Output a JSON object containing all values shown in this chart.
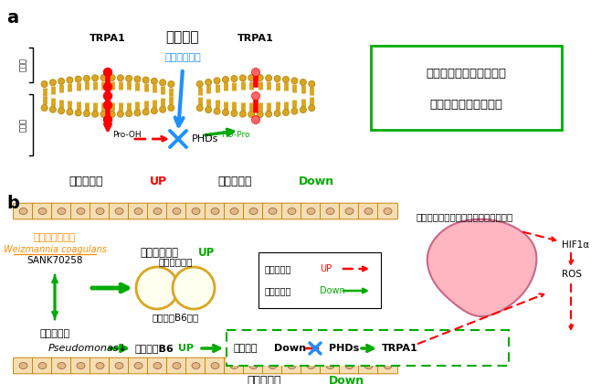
{
  "bg_color": "#ffffff",
  "gold": "#DAA520",
  "dark_gold": "#B8860B",
  "red": "#FF0000",
  "blue": "#1E90FF",
  "dark_blue": "#0000CD",
  "green": "#00AA00",
  "dark_green": "#008000",
  "pink": "#FFB6C1",
  "pink_edge": "#CC8899",
  "orange": "#FF8C00",
  "panel_a": {
    "label": "a",
    "trpa1_left": "TRPA1",
    "trpa1_right": "TRPA1",
    "oxalic": "シュウ酸",
    "hydroxyl": "水酸化の阻害",
    "phds": "PHDs",
    "pro_oh": "Pro-OH",
    "ho_pro": "HO-Pro",
    "cold_up_black": "寒冷感受性",
    "cold_up_red": "UP",
    "cold_down_black": "寒冷感受性",
    "cold_down_green": "Down",
    "soto": "細胞外",
    "nai": "細胞内",
    "box_line1": "生体内のシュウ酸濃度は",
    "box_line2": "寒冷感受性に影響する"
  },
  "panel_b": {
    "label": "b",
    "bacteria": "有胞子性乳酸菌",
    "bacteria_name": "Weizmannia coagulans",
    "sank": "SANK70258",
    "intestinal": "腸内細菌叢",
    "mannitol_up_black": "マンニトール",
    "mannitol_up_green": "UP",
    "carbon": "炭水化物代謝",
    "vitb6_meta": "ビタミンB6代謝",
    "cascade": "寒冷感受性に関わるカスケードの変化",
    "leg_up_black": "寒冷感受性",
    "leg_up_red": "UP",
    "leg_down_black": "寒冷感受性",
    "leg_down_green": "Down",
    "pseudomonas": "Pseudomonas↓",
    "vitb6_up_black": "ビタミンB6",
    "vitb6_up_green": "UP",
    "oxalic_down_black": "シュウ酸",
    "oxalic_down_white": "Down",
    "phds": "PHDs",
    "trpa1": "TRPA1",
    "hif1a": "HIF1α",
    "ros": "ROS",
    "cold_down2_black": "寒冷感受性",
    "cold_down2_green": "Down"
  }
}
